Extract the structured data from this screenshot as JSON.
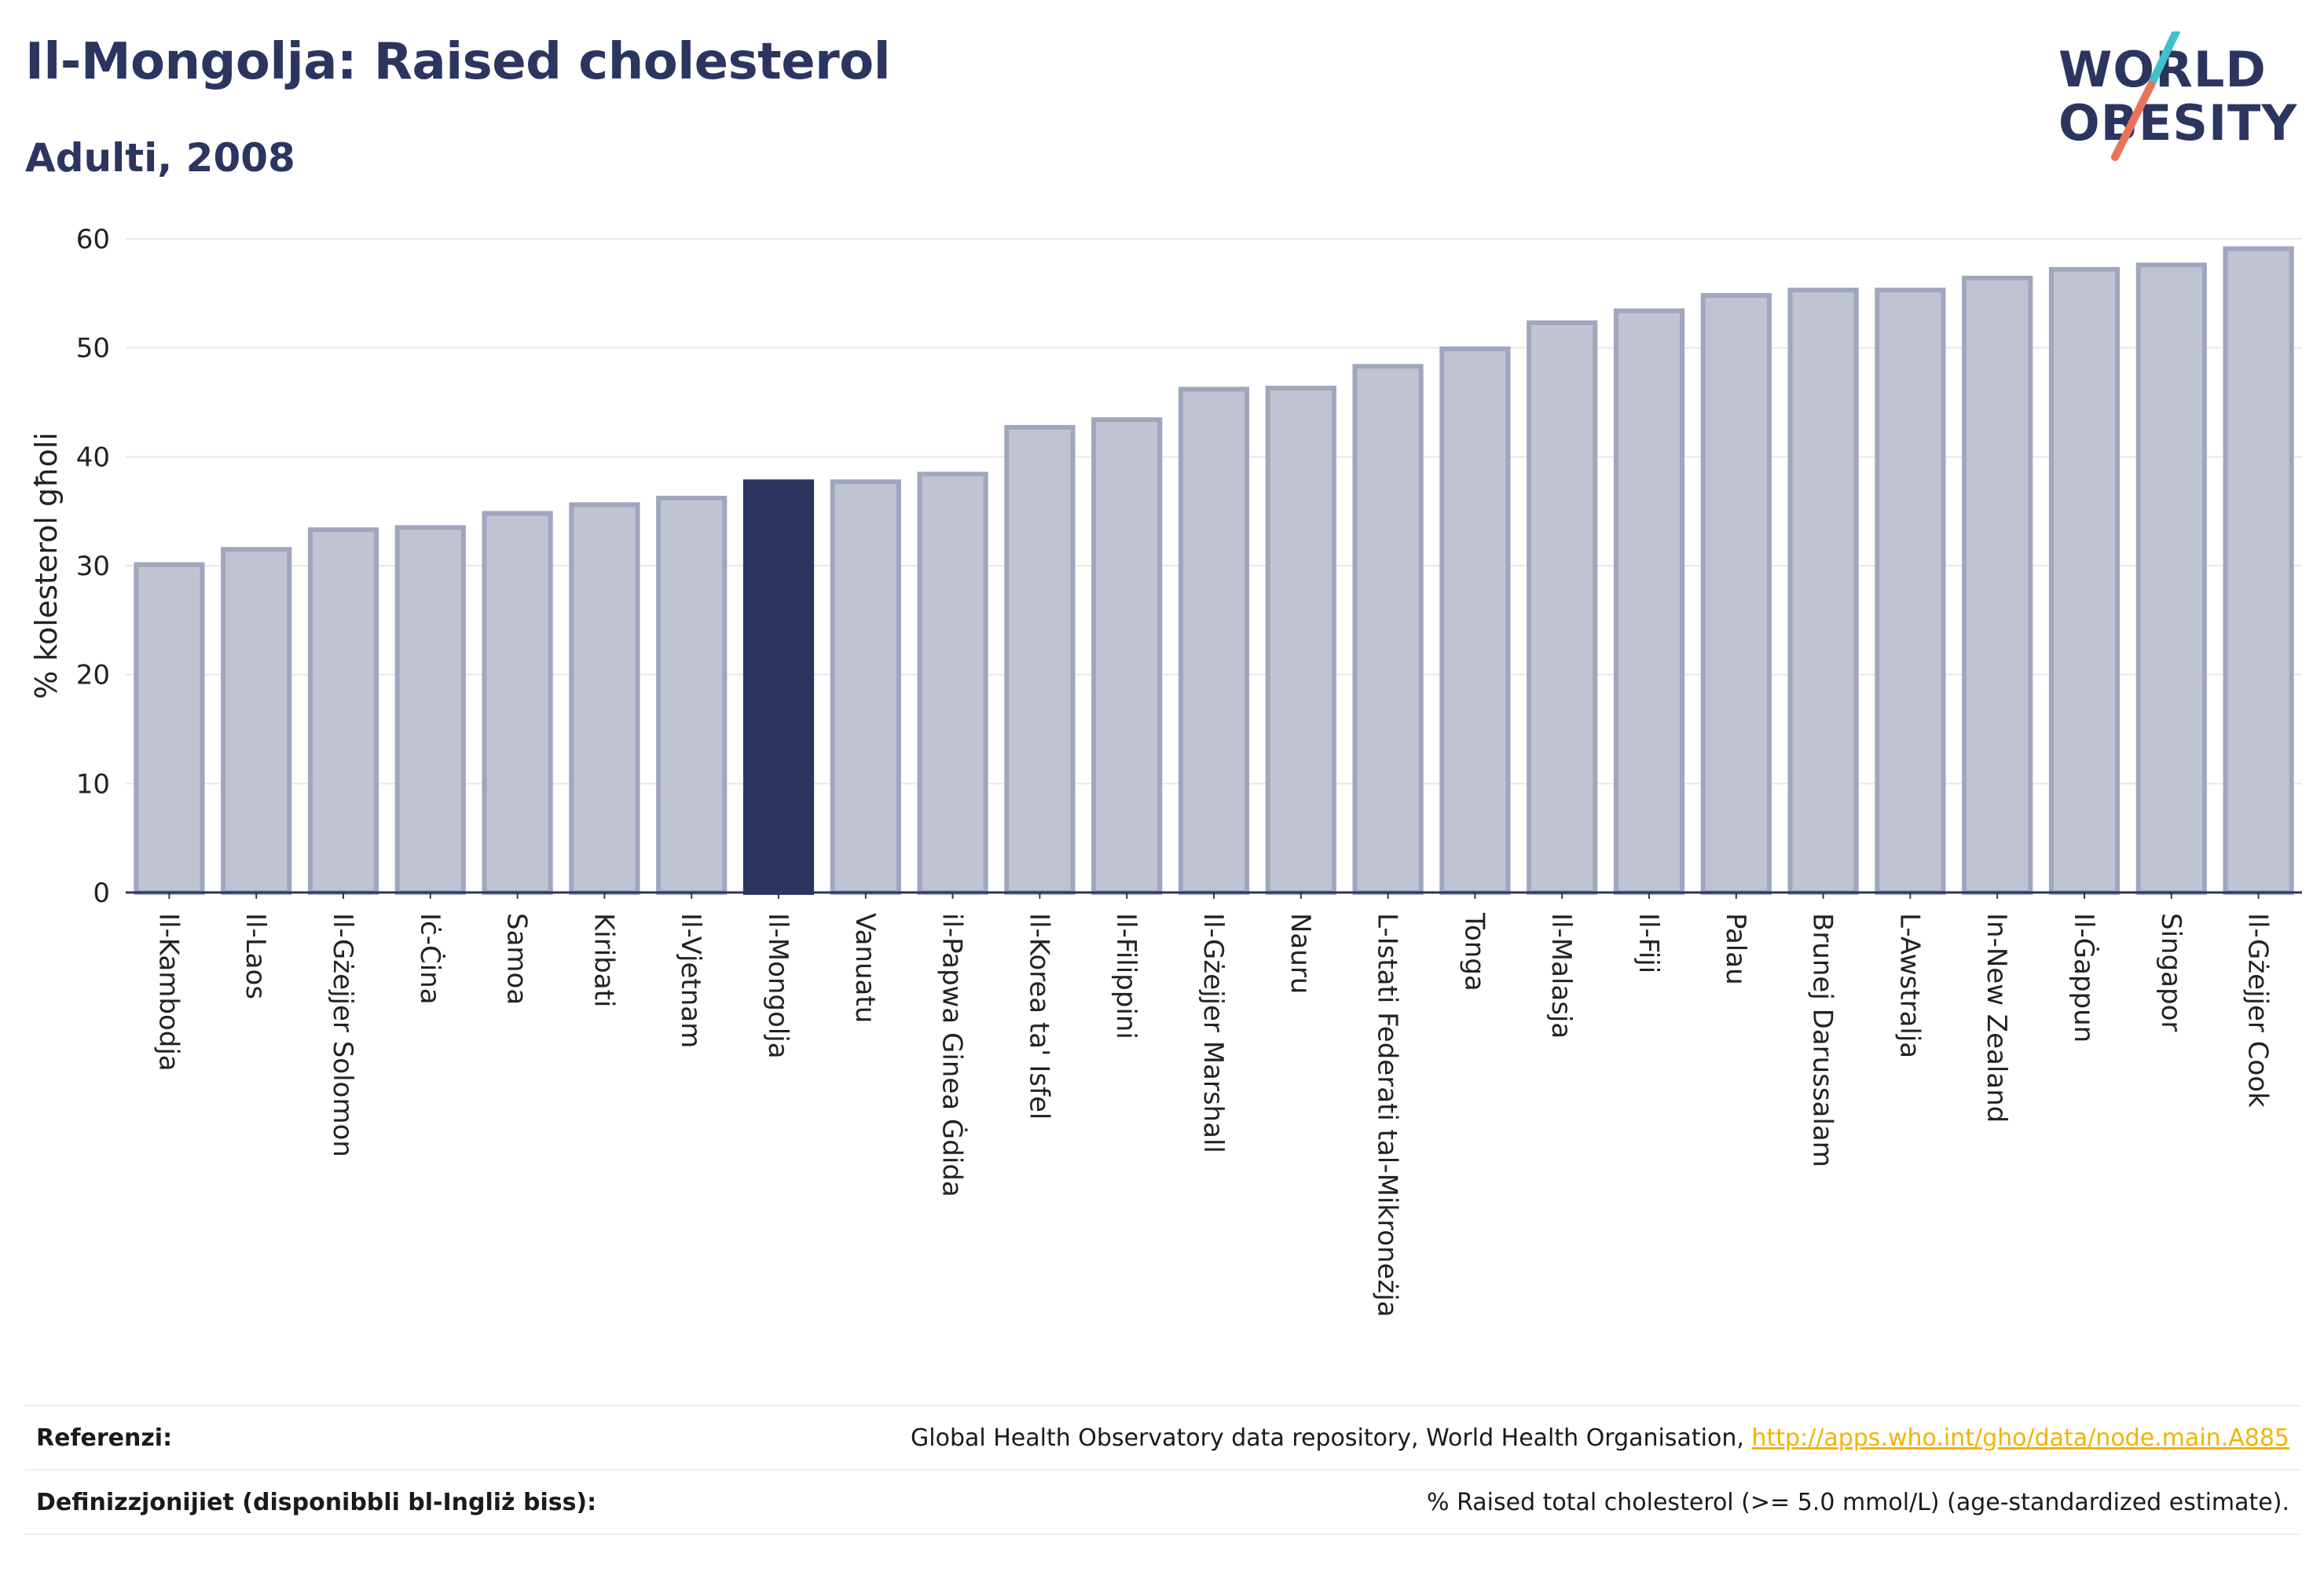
{
  "header": {
    "title": "Il-Mongolja: Raised cholesterol",
    "subtitle": "Adulti, 2008"
  },
  "logo": {
    "line1": "WORLD",
    "line2": "OBESITY",
    "slash_colors": [
      "#3fc1c9",
      "#e8735a"
    ]
  },
  "colors": {
    "bar": "#c0c4d2",
    "bar_border": "#9fa6bd",
    "highlight": "#2b3560",
    "axis": "#2b3560",
    "grid": "#e6e6ee"
  },
  "chart_data": {
    "type": "bar",
    "ylabel": "% kolesterol għoli",
    "ylim": [
      0,
      60
    ],
    "yticks": [
      0,
      10,
      20,
      30,
      40,
      50,
      60
    ],
    "grid": true,
    "highlight": "Il-Mongolja",
    "categories": [
      "Il-Kambodja",
      "Il-Laos",
      "Il-Gżejjer Solomon",
      "Iċ-Ċina",
      "Samoa",
      "Kiribati",
      "Il-Vjetnam",
      "Il-Mongolja",
      "Vanuatu",
      "il-Papwa Ginea Ġdida",
      "Il-Korea ta' Isfel",
      "Il-Filippini",
      "Il-Gżejjer Marshall",
      "Nauru",
      "L-Istati Federati tal-Mikroneżja",
      "Tonga",
      "Il-Malasja",
      "Il-Fiji",
      "Palau",
      "Brunej Darussalam",
      "L-Awstralja",
      "In-New Zealand",
      "Il-Ġappun",
      "Singapor",
      "Il-Gżejjer Cook"
    ],
    "values": [
      30.1,
      31.5,
      33.3,
      33.5,
      34.8,
      35.6,
      36.2,
      37.7,
      37.7,
      38.4,
      42.7,
      43.4,
      46.2,
      46.3,
      48.3,
      49.9,
      52.3,
      53.4,
      54.8,
      55.3,
      55.3,
      56.4,
      57.2,
      57.6,
      59.1
    ]
  },
  "footer": {
    "references_label": "Referenzi:",
    "references_text": "Global Health Observatory data repository, World Health Organisation, ",
    "references_link": "http://apps.who.int/gho/data/node.main.A885",
    "definitions_label": "Definizzjonijiet (disponibbli bl-Ingliż biss):",
    "definitions_text": "% Raised total cholesterol (>= 5.0 mmol/L) (age-standardized estimate)."
  }
}
